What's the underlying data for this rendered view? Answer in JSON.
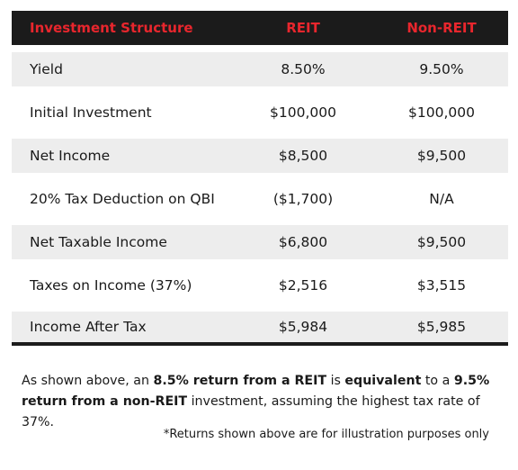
{
  "table": {
    "headers": [
      "Investment Structure",
      "REIT",
      "Non-REIT"
    ],
    "rows": [
      [
        "Yield",
        "8.50%",
        "9.50%"
      ],
      [
        "Initial Investment",
        "$100,000",
        "$100,000"
      ],
      [
        "Net Income",
        "$8,500",
        "$9,500"
      ],
      [
        "20% Tax Deduction on QBI",
        "($1,700)",
        "N/A"
      ],
      [
        "Net Taxable Income",
        "$6,800",
        "$9,500"
      ],
      [
        "Taxes on Income (37%)",
        "$2,516",
        "$3,515"
      ],
      [
        "Income After Tax",
        "$5,984",
        "$5,985"
      ]
    ]
  },
  "note": {
    "p1": "As shown above, an ",
    "b1": "8.5% return from a REIT",
    "p2": " is ",
    "b2": "equivalent",
    "p3": " to a ",
    "b3": "9.5% return from a non-REIT",
    "p4": " investment, assuming the highest tax rate of 37%."
  },
  "disclaimer": "*Returns shown above are for illustration purposes only",
  "colors": {
    "header_bg": "#1b1b1b",
    "header_text": "#e8262d",
    "row_shade": "#ededed"
  }
}
